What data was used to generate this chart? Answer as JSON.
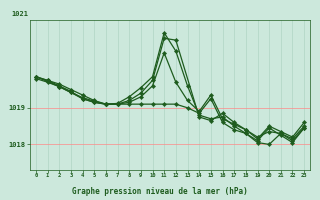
{
  "xlabel": "Graphe pression niveau de la mer (hPa)",
  "bg_color": "#cce8dc",
  "plot_bg_color": "#cce8dc",
  "line_color": "#1e5c1e",
  "grid_color_v": "#b0d4c4",
  "grid_color_h": "#ff8888",
  "tick_color": "#1e5c1e",
  "label_color": "#1e5c1e",
  "xlim": [
    -0.5,
    23.5
  ],
  "ylim": [
    1017.3,
    1021.4
  ],
  "yticks": [
    1018,
    1019
  ],
  "ytick_extra": 1021,
  "xticks": [
    0,
    1,
    2,
    3,
    4,
    5,
    6,
    7,
    8,
    9,
    10,
    11,
    12,
    13,
    14,
    15,
    16,
    17,
    18,
    19,
    20,
    21,
    22,
    23
  ],
  "series": [
    {
      "x": [
        0,
        1,
        2,
        3,
        4,
        5,
        6,
        7,
        8,
        9,
        10,
        11,
        12,
        13,
        14,
        15,
        16,
        17,
        18,
        19,
        20,
        21,
        22,
        23
      ],
      "y": [
        1019.85,
        1019.75,
        1019.65,
        1019.5,
        1019.35,
        1019.2,
        1019.1,
        1019.1,
        1019.15,
        1019.3,
        1019.6,
        1020.5,
        1019.7,
        1019.2,
        1018.9,
        1019.35,
        1018.7,
        1018.55,
        1018.4,
        1018.2,
        1018.35,
        1018.3,
        1018.15,
        1018.5
      ]
    },
    {
      "x": [
        0,
        1,
        2,
        3,
        4,
        5,
        6,
        7,
        8,
        9,
        10,
        11,
        12,
        14,
        15,
        16,
        17,
        18,
        19,
        20,
        21,
        22,
        23
      ],
      "y": [
        1019.85,
        1019.75,
        1019.6,
        1019.45,
        1019.25,
        1019.15,
        1019.1,
        1019.1,
        1019.2,
        1019.4,
        1019.75,
        1020.9,
        1020.85,
        1018.75,
        1018.65,
        1018.85,
        1018.6,
        1018.4,
        1018.15,
        1018.5,
        1018.35,
        1018.2,
        1018.6
      ]
    },
    {
      "x": [
        0,
        1,
        2,
        3,
        4,
        5,
        6,
        7,
        8,
        9,
        10,
        11,
        12,
        13,
        14,
        15,
        16,
        17,
        18,
        19,
        20,
        21,
        22,
        23
      ],
      "y": [
        1019.85,
        1019.72,
        1019.58,
        1019.42,
        1019.25,
        1019.15,
        1019.1,
        1019.12,
        1019.3,
        1019.55,
        1019.85,
        1021.05,
        1020.55,
        1019.6,
        1018.8,
        1018.7,
        1018.75,
        1018.5,
        1018.3,
        1018.1,
        1018.45,
        1018.25,
        1018.05,
        1018.45
      ]
    },
    {
      "x": [
        0,
        1,
        2,
        3,
        4,
        5,
        6,
        7,
        8,
        9,
        10,
        11,
        12,
        13,
        14,
        15,
        16,
        17,
        18,
        19,
        20,
        21,
        22,
        23
      ],
      "y": [
        1019.8,
        1019.7,
        1019.58,
        1019.42,
        1019.28,
        1019.18,
        1019.1,
        1019.1,
        1019.1,
        1019.1,
        1019.1,
        1019.1,
        1019.1,
        1019.0,
        1018.85,
        1019.25,
        1018.6,
        1018.4,
        1018.3,
        1018.05,
        1018.0,
        1018.3,
        1018.1,
        1018.45
      ]
    }
  ]
}
